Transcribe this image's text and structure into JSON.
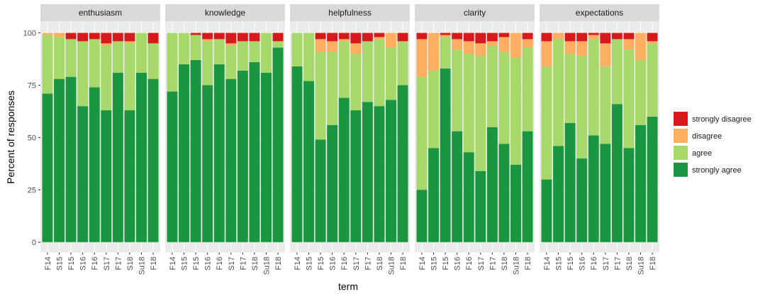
{
  "chart_data": {
    "type": "bar",
    "stacked": true,
    "facets": [
      "enthusiasm",
      "knowledge",
      "helpfulness",
      "clarity",
      "expectations"
    ],
    "categories": [
      "F14",
      "S15",
      "F15",
      "S16",
      "F16",
      "S17",
      "F17",
      "S18",
      "Su18",
      "F18"
    ],
    "xlabel": "term",
    "ylabel": "Percent of responses",
    "ylim": [
      0,
      100
    ],
    "yticks": [
      0,
      25,
      50,
      75,
      100
    ],
    "grid": true,
    "legend_position": "right",
    "series": [
      {
        "name": "strongly agree",
        "color": "#1a9641"
      },
      {
        "name": "agree",
        "color": "#a6d96a"
      },
      {
        "name": "disagree",
        "color": "#fdae61"
      },
      {
        "name": "strongly disagree",
        "color": "#d7191c"
      }
    ],
    "legend_order": [
      "strongly disagree",
      "disagree",
      "agree",
      "strongly agree"
    ],
    "data": {
      "enthusiasm": [
        [
          71,
          28,
          1,
          0
        ],
        [
          78,
          20,
          2,
          0
        ],
        [
          79,
          18,
          0,
          3
        ],
        [
          65,
          31,
          0,
          4
        ],
        [
          74,
          23,
          0,
          3
        ],
        [
          63,
          31,
          1,
          5
        ],
        [
          81,
          15,
          0,
          4
        ],
        [
          63,
          32,
          1,
          4
        ],
        [
          81,
          19,
          0,
          0
        ],
        [
          78,
          17,
          0,
          5
        ]
      ],
      "knowledge": [
        [
          72,
          28,
          0,
          0
        ],
        [
          85,
          15,
          0,
          0
        ],
        [
          87,
          12,
          0,
          1
        ],
        [
          75,
          21,
          1,
          3
        ],
        [
          85,
          12,
          0,
          3
        ],
        [
          78,
          16,
          1,
          5
        ],
        [
          82,
          14,
          0,
          4
        ],
        [
          86,
          10,
          0,
          4
        ],
        [
          81,
          19,
          0,
          0
        ],
        [
          93,
          3,
          0,
          4
        ]
      ],
      "helpfulness": [
        [
          84,
          16,
          0,
          0
        ],
        [
          77,
          23,
          0,
          0
        ],
        [
          49,
          42,
          6,
          3
        ],
        [
          56,
          35,
          5,
          4
        ],
        [
          69,
          27,
          1,
          3
        ],
        [
          63,
          27,
          5,
          5
        ],
        [
          67,
          29,
          0,
          4
        ],
        [
          65,
          32,
          1,
          2
        ],
        [
          68,
          25,
          7,
          0
        ],
        [
          75,
          21,
          0,
          4
        ]
      ],
      "clarity": [
        [
          25,
          54,
          18,
          3
        ],
        [
          45,
          37,
          18,
          0
        ],
        [
          83,
          15,
          1,
          1
        ],
        [
          53,
          39,
          5,
          3
        ],
        [
          43,
          47,
          6,
          4
        ],
        [
          34,
          55,
          6,
          5
        ],
        [
          55,
          39,
          2,
          4
        ],
        [
          47,
          44,
          7,
          2
        ],
        [
          37,
          51,
          12,
          0
        ],
        [
          53,
          40,
          4,
          3
        ]
      ],
      "expectations": [
        [
          30,
          54,
          12,
          4
        ],
        [
          46,
          51,
          3,
          0
        ],
        [
          57,
          33,
          6,
          4
        ],
        [
          40,
          49,
          7,
          4
        ],
        [
          51,
          46,
          2,
          1
        ],
        [
          47,
          37,
          11,
          5
        ],
        [
          66,
          31,
          0,
          3
        ],
        [
          45,
          47,
          5,
          3
        ],
        [
          56,
          31,
          13,
          0
        ],
        [
          60,
          35,
          1,
          4
        ]
      ]
    }
  }
}
